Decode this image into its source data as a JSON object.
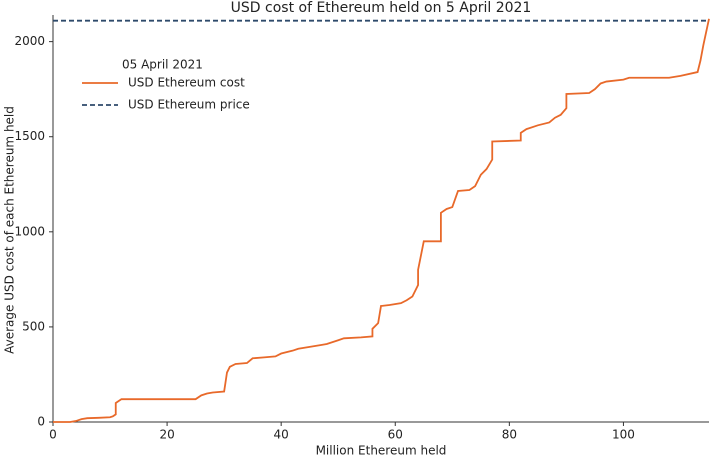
{
  "chart_data": {
    "type": "line",
    "title": "USD cost of Ethereum held on 5 April 2021",
    "x_label": "Million Ethereum held",
    "y_label": "Average USD cost of each Ethereum held",
    "legend_title": "05 April 2021",
    "legend": "upper left",
    "grid": false,
    "xlim": [
      0,
      115
    ],
    "ylim": [
      0,
      2140
    ],
    "xticks": [
      0,
      20,
      40,
      60,
      80,
      100
    ],
    "yticks": [
      0,
      500,
      1000,
      1500,
      2000
    ],
    "series": [
      {
        "name": "USD Ethereum cost",
        "color": "#e8692a",
        "linestyle": "solid",
        "x": [
          0,
          3,
          4,
          5,
          6,
          8,
          10,
          10.5,
          11,
          11,
          12,
          25,
          26,
          27,
          28,
          30,
          30.5,
          31,
          32,
          34,
          35,
          37,
          39,
          40,
          42,
          43,
          45,
          47,
          48,
          50,
          51,
          54,
          56,
          56,
          57,
          57.5,
          59,
          61,
          62,
          63,
          64,
          64,
          65,
          68,
          68,
          69,
          70,
          71,
          73,
          74,
          75,
          76,
          77,
          77,
          82,
          82,
          83,
          85,
          87,
          88,
          89,
          90,
          90,
          94,
          95,
          96,
          97,
          100,
          101,
          108,
          110,
          113,
          113.5,
          114,
          115
        ],
        "values": [
          0,
          0,
          5,
          15,
          20,
          22,
          25,
          30,
          40,
          100,
          120,
          120,
          140,
          150,
          155,
          160,
          260,
          290,
          305,
          310,
          335,
          340,
          345,
          360,
          375,
          385,
          395,
          405,
          410,
          430,
          440,
          445,
          450,
          490,
          520,
          610,
          615,
          625,
          640,
          660,
          720,
          800,
          950,
          950,
          1100,
          1120,
          1130,
          1215,
          1220,
          1240,
          1300,
          1330,
          1380,
          1475,
          1480,
          1520,
          1540,
          1560,
          1575,
          1600,
          1615,
          1650,
          1725,
          1730,
          1750,
          1780,
          1790,
          1800,
          1810,
          1810,
          1820,
          1840,
          1900,
          1980,
          2120
        ]
      },
      {
        "name": "USD Ethereum price",
        "color": "#2e4a6b",
        "linestyle": "dashed",
        "x": [
          0,
          115
        ],
        "values": [
          2110,
          2110
        ]
      }
    ]
  }
}
